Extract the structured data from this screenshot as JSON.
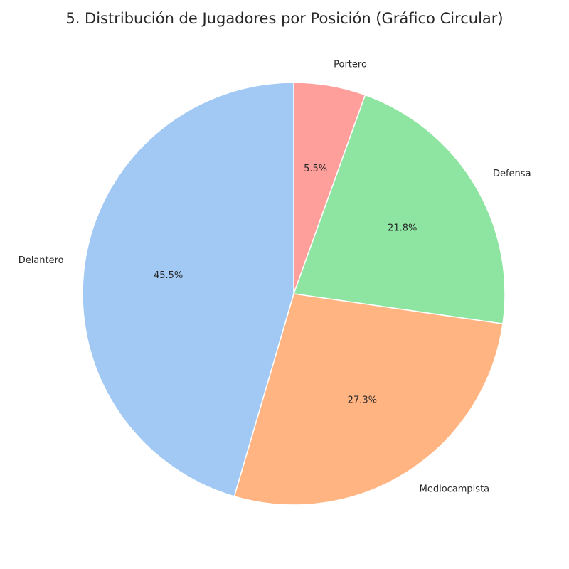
{
  "chart_data": {
    "type": "pie",
    "title": "5. Distribución de Jugadores por Posición (Gráfico Circular)",
    "start_angle_deg": 90,
    "direction": "clockwise",
    "slices": [
      {
        "label": "Portero",
        "value": 5.5,
        "pct_label": "5.5%",
        "color": "#ff9f9b"
      },
      {
        "label": "Defensa",
        "value": 21.8,
        "pct_label": "21.8%",
        "color": "#8de5a1"
      },
      {
        "label": "Mediocampista",
        "value": 27.3,
        "pct_label": "27.3%",
        "color": "#ffb482"
      },
      {
        "label": "Delantero",
        "value": 45.5,
        "pct_label": "45.5%",
        "color": "#a1c9f4"
      }
    ],
    "edge_color": "#ffffff"
  }
}
